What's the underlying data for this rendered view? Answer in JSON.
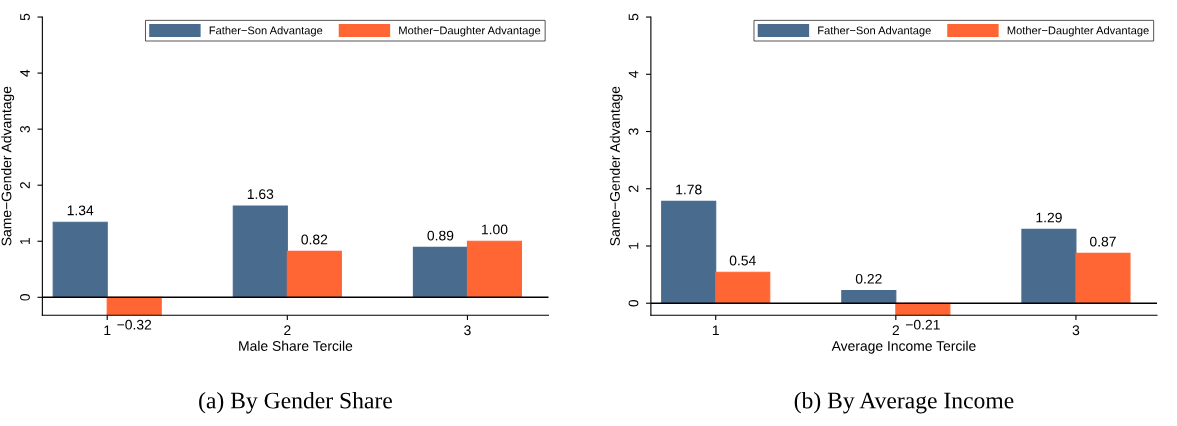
{
  "chart_data": [
    {
      "type": "bar",
      "title": "(a) By Gender Share",
      "xlabel": "Male Share Tercile",
      "ylabel": "Same−Gender Advantage",
      "categories": [
        "1",
        "2",
        "3"
      ],
      "series": [
        {
          "name": "Father−Son Advantage",
          "color": "#486b8e",
          "values": [
            1.34,
            1.63,
            0.89
          ],
          "value_labels": [
            "1.34",
            "1.63",
            "0.89"
          ]
        },
        {
          "name": "Mother−Daughter Advantage",
          "color": "#ff6633",
          "values": [
            -0.32,
            0.82,
            1.0
          ],
          "value_labels": [
            "−0.32",
            "0.82",
            "1.00"
          ]
        }
      ],
      "ylim": [
        -0.32,
        5
      ],
      "yticks": [
        0,
        1,
        2,
        3,
        4,
        5
      ],
      "grid": false,
      "legend": "top right",
      "ref_lines": [
        {
          "axis": "y",
          "value": 0,
          "color": "#000000"
        }
      ]
    },
    {
      "type": "bar",
      "title": "(b) By Average Income",
      "xlabel": "Average Income Tercile",
      "ylabel": "Same−Gender Advantage",
      "categories": [
        "1",
        "2",
        "3"
      ],
      "series": [
        {
          "name": "Father−Son Advantage",
          "color": "#486b8e",
          "values": [
            1.78,
            0.22,
            1.29
          ],
          "value_labels": [
            "1.78",
            "0.22",
            "1.29"
          ]
        },
        {
          "name": "Mother−Daughter Advantage",
          "color": "#ff6633",
          "values": [
            0.54,
            -0.21,
            0.87
          ],
          "value_labels": [
            "0.54",
            "−0.21",
            "0.87"
          ]
        }
      ],
      "ylim": [
        -0.21,
        5
      ],
      "yticks": [
        0,
        1,
        2,
        3,
        4,
        5
      ],
      "grid": false,
      "legend": "top right",
      "ref_lines": [
        {
          "axis": "y",
          "value": 0,
          "color": "#000000"
        }
      ]
    }
  ]
}
